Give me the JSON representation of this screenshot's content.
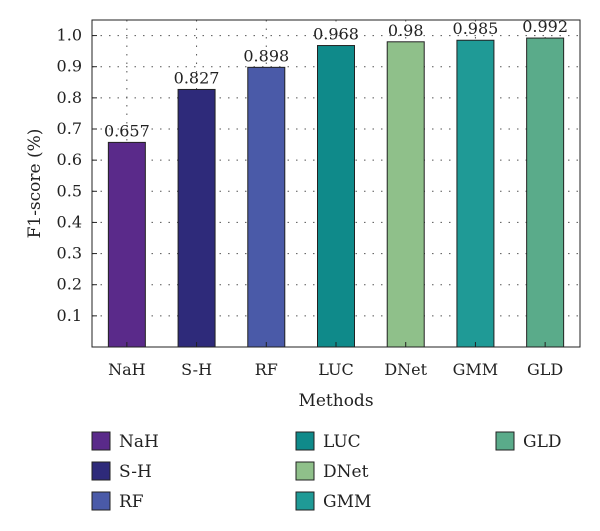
{
  "chart_data": {
    "type": "bar",
    "categories": [
      "NaH",
      "S-H",
      "RF",
      "LUC",
      "DNet",
      "GMM",
      "GLD"
    ],
    "values": [
      0.657,
      0.827,
      0.898,
      0.968,
      0.98,
      0.985,
      0.992
    ],
    "value_labels": [
      "0.657",
      "0.827",
      "0.898",
      "0.968",
      "0.98",
      "0.985",
      "0.992"
    ],
    "colors": [
      "#5a2a8a",
      "#2e2a7a",
      "#4a5aa8",
      "#0f8a8a",
      "#8fc08a",
      "#1f9a96",
      "#5aab8a"
    ],
    "xlabel": "Methods",
    "ylabel": "F1-score (%)",
    "ylim": [
      0,
      1.05
    ],
    "yticks": [
      0.1,
      0.2,
      0.3,
      0.4,
      0.5,
      0.6,
      0.7,
      0.8,
      0.9,
      1.0
    ],
    "ytick_labels": [
      "0.1",
      "0.2",
      "0.3",
      "0.4",
      "0.5",
      "0.6",
      "0.7",
      "0.8",
      "0.9",
      "1.0"
    ],
    "grid": "dotted",
    "legend": {
      "placement": "bottom",
      "entries": [
        "NaH",
        "S-H",
        "RF",
        "LUC",
        "DNet",
        "GMM",
        "GLD"
      ]
    }
  }
}
